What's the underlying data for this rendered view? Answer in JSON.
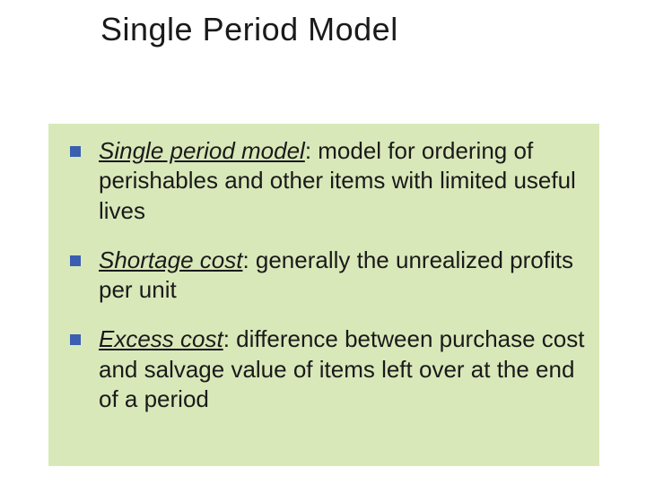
{
  "slide": {
    "title": "Single Period Model",
    "title_fontsize": 36,
    "title_color": "#1a1a1a",
    "background_color": "#ffffff",
    "content_box": {
      "background_color": "#d9e8b9",
      "bullet_marker_color": "#3a5fb0",
      "bullet_marker_size": 12,
      "text_color": "#1a1a1a",
      "text_fontsize": 26,
      "items": [
        {
          "term": "Single period model",
          "definition": ": model for ordering of perishables and other items with limited useful lives"
        },
        {
          "term": "Shortage cost",
          "definition": ": generally the unrealized profits per unit"
        },
        {
          "term": "Excess cost",
          "definition": ": difference between purchase cost and salvage value of items left over at the end of a period"
        }
      ]
    }
  }
}
